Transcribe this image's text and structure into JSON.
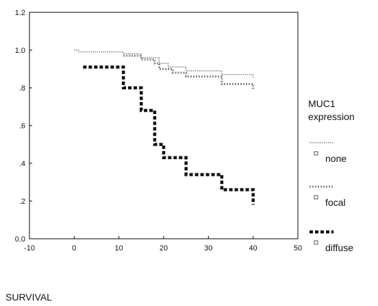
{
  "chart_data": {
    "type": "line",
    "subtype": "kaplan-meier step survival",
    "title": "",
    "xlabel": "SURVIVAL",
    "ylabel": "",
    "xlim": [
      -10,
      50
    ],
    "ylim": [
      0,
      1.2
    ],
    "x_ticks": [
      -10,
      0,
      10,
      20,
      30,
      40,
      50
    ],
    "x_tick_labels": [
      "-10",
      "0",
      "10",
      "20",
      "30",
      "40",
      "50"
    ],
    "y_ticks": [
      0,
      0.2,
      0.4,
      0.6,
      0.8,
      1.0,
      1.2
    ],
    "y_tick_labels": [
      "0.0",
      ".2",
      ".4",
      ".6",
      ".8",
      "1.0",
      "1.2"
    ],
    "grid": false,
    "legend": {
      "title_lines": [
        "MUC1",
        "expression"
      ],
      "placement": "right, outside plot area"
    },
    "series": [
      {
        "name": "none",
        "style": "thin dotted",
        "color": "#444444",
        "points": [
          [
            0,
            1.0
          ],
          [
            1,
            1.0
          ],
          [
            1,
            0.99
          ],
          [
            11,
            0.99
          ],
          [
            11,
            0.98
          ],
          [
            15,
            0.98
          ],
          [
            15,
            0.96
          ],
          [
            19,
            0.96
          ],
          [
            19,
            0.93
          ],
          [
            21,
            0.93
          ],
          [
            21,
            0.91
          ],
          [
            25,
            0.91
          ],
          [
            25,
            0.89
          ],
          [
            33,
            0.89
          ],
          [
            33,
            0.87
          ],
          [
            40,
            0.87
          ],
          [
            40,
            0.85
          ]
        ]
      },
      {
        "name": "focal",
        "style": "medium dotted, hatched",
        "color": "#888888",
        "points": [
          [
            11,
            0.97
          ],
          [
            15,
            0.97
          ],
          [
            15,
            0.95
          ],
          [
            18,
            0.95
          ],
          [
            18,
            0.93
          ],
          [
            19,
            0.93
          ],
          [
            19,
            0.9
          ],
          [
            22,
            0.9
          ],
          [
            22,
            0.88
          ],
          [
            25,
            0.88
          ],
          [
            25,
            0.86
          ],
          [
            33,
            0.86
          ],
          [
            33,
            0.82
          ],
          [
            40,
            0.82
          ],
          [
            40,
            0.79
          ]
        ]
      },
      {
        "name": "diffuse",
        "style": "heavy dashed",
        "color": "#111111",
        "points": [
          [
            2,
            0.91
          ],
          [
            11,
            0.91
          ],
          [
            11,
            0.8
          ],
          [
            15,
            0.8
          ],
          [
            15,
            0.68
          ],
          [
            18,
            0.68
          ],
          [
            18,
            0.5
          ],
          [
            20,
            0.5
          ],
          [
            20,
            0.43
          ],
          [
            25,
            0.43
          ],
          [
            25,
            0.34
          ],
          [
            33,
            0.34
          ],
          [
            33,
            0.26
          ],
          [
            40,
            0.26
          ],
          [
            40,
            0.18
          ]
        ]
      }
    ]
  }
}
